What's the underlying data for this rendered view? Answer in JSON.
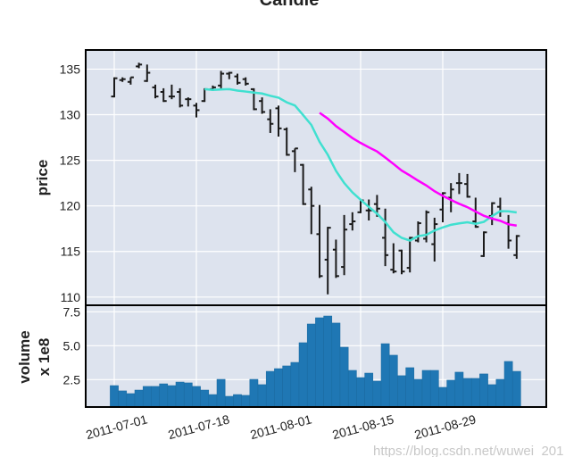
{
  "chart_data": {
    "type": "ohlc",
    "title": "Candle",
    "ylabel_price": "price",
    "ylabel_volume": "volume",
    "volume_scale_label": "x 1e8",
    "x_tick_labels": [
      "2011-07-01",
      "2011-07-18",
      "2011-08-01",
      "2011-08-15",
      "2011-08-29"
    ],
    "x_tick_index": [
      0,
      10,
      20,
      30,
      40
    ],
    "price_ticks": [
      110,
      115,
      120,
      125,
      130,
      135
    ],
    "price_ylim": [
      109.1,
      137.1
    ],
    "volume_ticks": [
      "2.5",
      "5.0",
      "7.5"
    ],
    "volume_ylim": [
      0.48,
      7.98
    ],
    "grid": true,
    "dates": [
      "2011-07-01",
      "2011-07-05",
      "2011-07-06",
      "2011-07-07",
      "2011-07-08",
      "2011-07-11",
      "2011-07-12",
      "2011-07-13",
      "2011-07-14",
      "2011-07-15",
      "2011-07-18",
      "2011-07-19",
      "2011-07-20",
      "2011-07-21",
      "2011-07-22",
      "2011-07-25",
      "2011-07-26",
      "2011-07-27",
      "2011-07-28",
      "2011-07-29",
      "2011-08-01",
      "2011-08-02",
      "2011-08-03",
      "2011-08-04",
      "2011-08-05",
      "2011-08-08",
      "2011-08-09",
      "2011-08-10",
      "2011-08-11",
      "2011-08-12",
      "2011-08-15",
      "2011-08-16",
      "2011-08-17",
      "2011-08-18",
      "2011-08-19",
      "2011-08-22",
      "2011-08-23",
      "2011-08-24",
      "2011-08-25",
      "2011-08-26",
      "2011-08-29",
      "2011-08-30",
      "2011-08-31",
      "2011-09-01",
      "2011-09-02",
      "2011-09-06",
      "2011-09-07",
      "2011-09-08",
      "2011-09-09",
      "2011-09-12"
    ],
    "open": [
      132.0,
      133.8,
      133.6,
      135.3,
      133.7,
      133.0,
      132.5,
      132.0,
      132.5,
      131.7,
      131.0,
      131.5,
      132.8,
      133.2,
      134.5,
      134.2,
      133.9,
      132.8,
      131.5,
      129.5,
      130.7,
      128.4,
      126.0,
      124.5,
      121.8,
      116.9,
      114.1,
      115.2,
      113.3,
      118.0,
      119.3,
      119.5,
      120.2,
      116.5,
      113.0,
      115.1,
      113.2,
      116.2,
      116.4,
      115.8,
      119.6,
      120.9,
      122.5,
      122.4,
      118.3,
      114.5,
      118.9,
      119.9,
      118.1,
      114.6
    ],
    "high": [
      134.1,
      134.1,
      134.1,
      135.7,
      135.5,
      133.3,
      132.9,
      133.3,
      132.9,
      131.9,
      131.3,
      132.9,
      133.2,
      134.8,
      134.7,
      134.5,
      134.1,
      132.9,
      131.9,
      130.6,
      131.0,
      128.6,
      126.3,
      124.6,
      122.1,
      120.1,
      117.7,
      116.3,
      119.0,
      119.3,
      120.7,
      120.7,
      121.2,
      119.7,
      115.9,
      115.2,
      116.6,
      118.3,
      119.5,
      118.7,
      121.5,
      122.5,
      123.6,
      123.5,
      120.9,
      117.2,
      120.4,
      120.9,
      119.0,
      116.8
    ],
    "low": [
      131.9,
      133.6,
      133.3,
      135.1,
      133.6,
      131.8,
      131.4,
      131.7,
      130.8,
      130.9,
      129.7,
      131.4,
      132.6,
      132.9,
      133.9,
      133.3,
      133.2,
      130.5,
      130.1,
      128.0,
      127.6,
      125.5,
      123.7,
      120.1,
      116.9,
      112.1,
      110.3,
      112.1,
      112.4,
      117.3,
      119.2,
      118.4,
      118.8,
      113.4,
      112.6,
      112.5,
      112.7,
      116.0,
      116.0,
      113.9,
      118.2,
      119.3,
      121.3,
      120.9,
      117.6,
      114.4,
      117.9,
      118.8,
      115.3,
      114.2
    ],
    "close": [
      134.0,
      133.9,
      134.1,
      135.5,
      134.6,
      132.0,
      131.5,
      132.0,
      131.0,
      131.7,
      130.5,
      132.8,
      133.0,
      134.5,
      134.6,
      133.5,
      133.4,
      130.6,
      130.3,
      129.0,
      128.5,
      125.6,
      126.3,
      120.2,
      120.0,
      112.3,
      117.6,
      112.3,
      117.4,
      118.3,
      120.6,
      119.5,
      119.7,
      114.6,
      112.8,
      112.8,
      116.5,
      118.1,
      119.3,
      118.0,
      121.4,
      121.8,
      122.5,
      121.0,
      117.7,
      117.1,
      120.3,
      119.4,
      116.2,
      116.7
    ],
    "volume": [
      2.06,
      1.67,
      1.47,
      1.73,
      2.0,
      2.0,
      2.19,
      2.06,
      2.32,
      2.26,
      2.0,
      1.73,
      1.4,
      2.52,
      1.27,
      1.4,
      1.34,
      2.52,
      2.13,
      3.11,
      3.31,
      3.51,
      3.77,
      5.22,
      6.6,
      7.06,
      7.19,
      6.67,
      4.89,
      3.18,
      2.65,
      2.98,
      2.39,
      5.15,
      4.3,
      2.79,
      3.38,
      2.52,
      3.18,
      3.18,
      1.93,
      2.46,
      3.05,
      2.59,
      2.59,
      2.92,
      2.13,
      2.52,
      3.84,
      3.11
    ],
    "moving_averages": [
      {
        "window": 12,
        "color": "#40e0d0"
      },
      {
        "window": 26,
        "color": "#ff00ff"
      }
    ],
    "colors": {
      "bar": "#1a1a1a",
      "volume": "#1f77b4",
      "background": "#dde3ee",
      "grid": "#ffffff"
    }
  },
  "watermark": "https://blog.csdn.net/wuwei_201"
}
